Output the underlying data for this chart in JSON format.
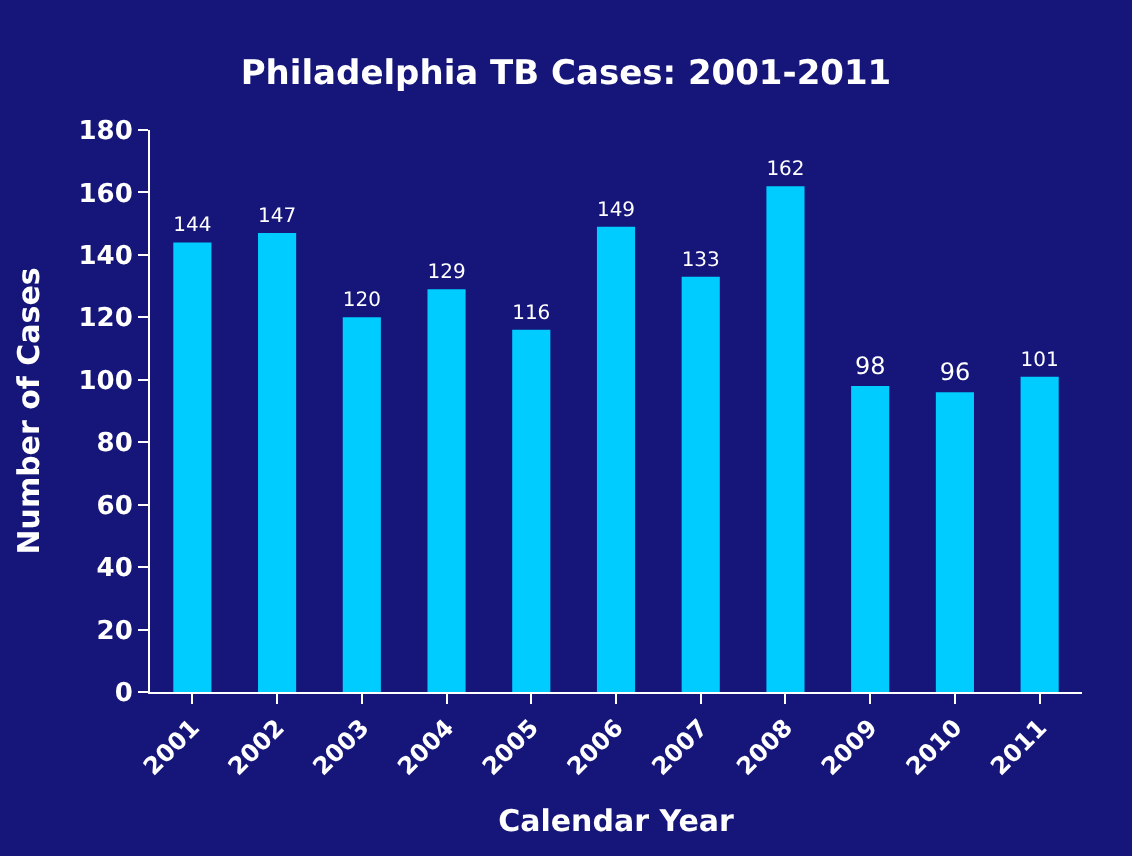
{
  "chart_data": {
    "type": "bar",
    "title": "Philadelphia TB Cases: 2001-2011",
    "xlabel": "Calendar Year",
    "ylabel": "Number of Cases",
    "categories": [
      "2001",
      "2002",
      "2003",
      "2004",
      "2005",
      "2006",
      "2007",
      "2008",
      "2009",
      "2010",
      "2011"
    ],
    "values": [
      144,
      147,
      120,
      129,
      116,
      149,
      133,
      162,
      98,
      96,
      101
    ],
    "color": "#00ccff",
    "ylim": [
      0,
      180
    ],
    "yticks": [
      0,
      20,
      40,
      60,
      80,
      100,
      120,
      140,
      160,
      180
    ],
    "grid": false,
    "data_labels": true
  }
}
